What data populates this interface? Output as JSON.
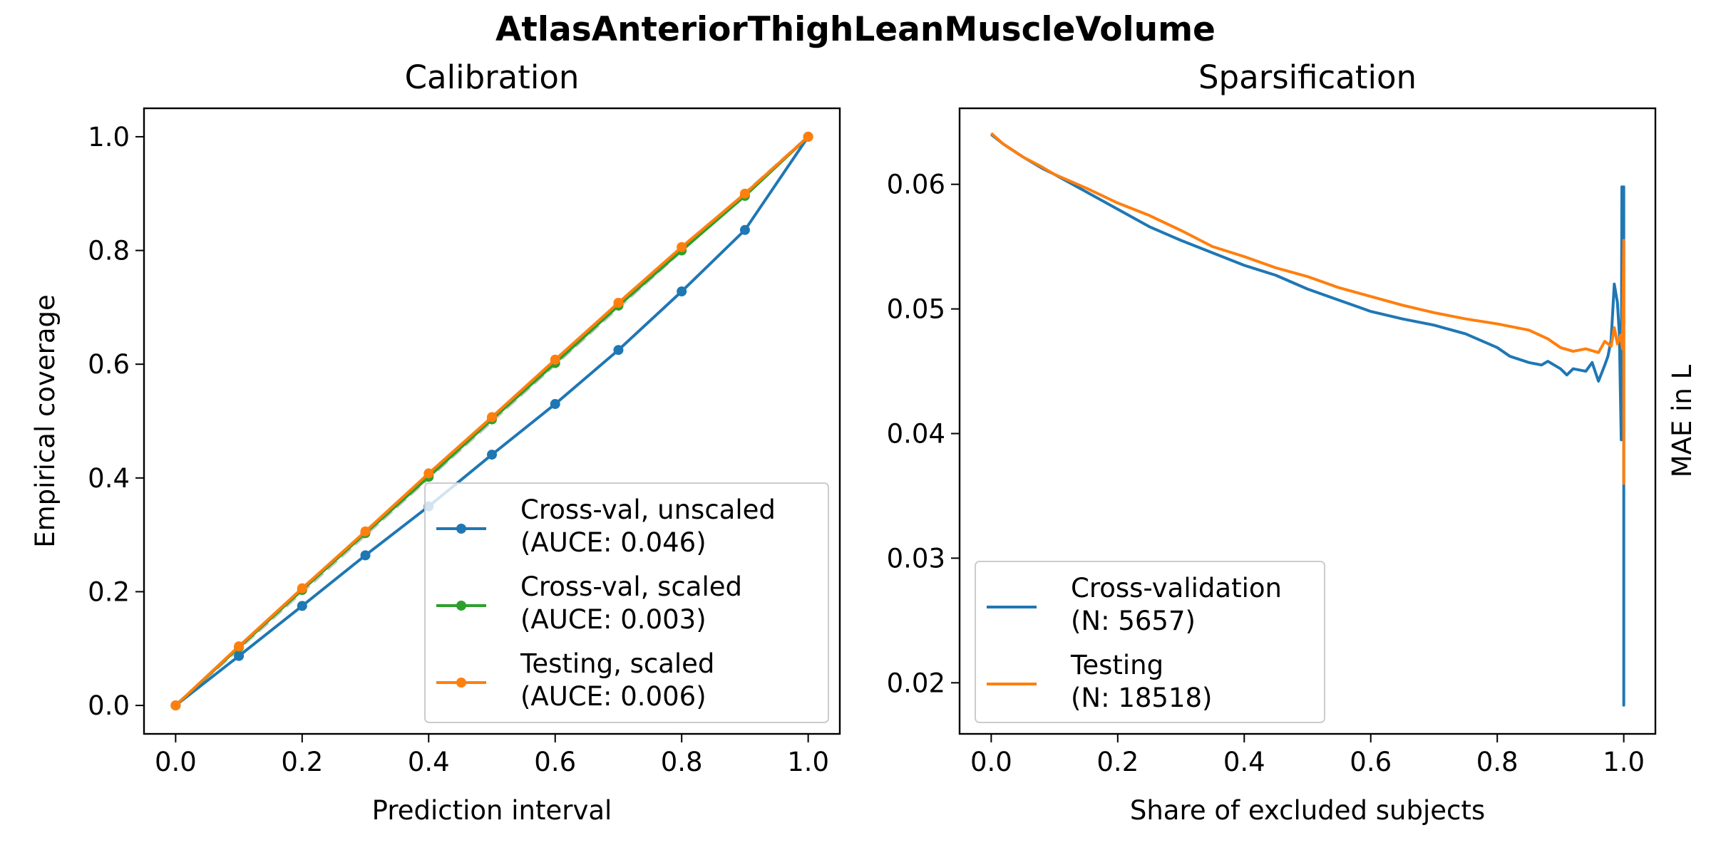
{
  "figure": {
    "title": "AtlasAnteriorThighLeanMuscleVolume"
  },
  "chart_data": [
    {
      "type": "line",
      "title": "Calibration",
      "xlabel": "Prediction interval",
      "ylabel": "Empirical coverage",
      "xlim": [
        -0.05,
        1.05
      ],
      "ylim": [
        -0.05,
        1.05
      ],
      "xticks": [
        "0.0",
        "0.2",
        "0.4",
        "0.6",
        "0.8",
        "1.0"
      ],
      "yticks": [
        "0.0",
        "0.2",
        "0.4",
        "0.6",
        "0.8",
        "1.0"
      ],
      "grid": false,
      "legend_position": "lower-right",
      "reference_line": {
        "x": [
          0,
          1
        ],
        "y": [
          0,
          1
        ],
        "style": "dashed",
        "color": "#c8c8c8"
      },
      "x": [
        0.0,
        0.1,
        0.2,
        0.3,
        0.4,
        0.5,
        0.6,
        0.7,
        0.8,
        0.9,
        1.0
      ],
      "series": [
        {
          "name": "Cross-val, unscaled",
          "legend_line2": "(AUCE: 0.046)",
          "color": "#1f77b4",
          "values": [
            0.0,
            0.087,
            0.175,
            0.264,
            0.35,
            0.441,
            0.53,
            0.625,
            0.728,
            0.836,
            1.0
          ]
        },
        {
          "name": "Cross-val, scaled",
          "legend_line2": "(AUCE: 0.003)",
          "color": "#2ca02c",
          "values": [
            0.0,
            0.102,
            0.203,
            0.303,
            0.402,
            0.503,
            0.602,
            0.703,
            0.8,
            0.896,
            1.0
          ]
        },
        {
          "name": "Testing, scaled",
          "legend_line2": "(AUCE: 0.006)",
          "color": "#ff7f0e",
          "values": [
            0.0,
            0.104,
            0.206,
            0.306,
            0.408,
            0.507,
            0.608,
            0.708,
            0.806,
            0.9,
            1.0
          ]
        }
      ]
    },
    {
      "type": "line",
      "title": "Sparsification",
      "xlabel": "Share of excluded subjects",
      "ylabel": "MAE in L",
      "ylabel_side": "right",
      "xlim": [
        -0.05,
        1.05
      ],
      "ylim": [
        0.0159,
        0.0661
      ],
      "xticks": [
        "0.0",
        "0.2",
        "0.4",
        "0.6",
        "0.8",
        "1.0"
      ],
      "yticks": [
        "0.02",
        "0.03",
        "0.04",
        "0.05",
        "0.06"
      ],
      "grid": false,
      "legend_position": "lower-left",
      "series": [
        {
          "name": "Cross-validation",
          "legend_line2": "(N: 5657)",
          "color": "#1f77b4",
          "x": [
            0.0,
            0.02,
            0.05,
            0.08,
            0.1,
            0.15,
            0.2,
            0.25,
            0.3,
            0.35,
            0.4,
            0.45,
            0.5,
            0.55,
            0.6,
            0.65,
            0.7,
            0.75,
            0.8,
            0.82,
            0.85,
            0.87,
            0.88,
            0.9,
            0.91,
            0.92,
            0.94,
            0.95,
            0.96,
            0.97,
            0.975,
            0.98,
            0.985,
            0.99,
            0.993,
            0.996,
            0.997,
            0.998,
            0.999,
            1.0,
            1.0,
            1.0
          ],
          "values": [
            0.064,
            0.0632,
            0.0622,
            0.0613,
            0.0608,
            0.0594,
            0.058,
            0.0566,
            0.0555,
            0.0545,
            0.0535,
            0.0527,
            0.0516,
            0.0507,
            0.0498,
            0.0492,
            0.0487,
            0.048,
            0.0469,
            0.0462,
            0.0457,
            0.0455,
            0.0458,
            0.0452,
            0.0447,
            0.0452,
            0.045,
            0.0457,
            0.0442,
            0.0455,
            0.0462,
            0.0475,
            0.052,
            0.0505,
            0.048,
            0.0395,
            0.0598,
            0.041,
            0.05,
            0.0598,
            0.0182,
            0.04
          ]
        },
        {
          "name": "Testing",
          "legend_line2": "(N: 18518)",
          "color": "#ff7f0e",
          "x": [
            0.0,
            0.02,
            0.05,
            0.08,
            0.1,
            0.15,
            0.2,
            0.25,
            0.3,
            0.35,
            0.4,
            0.45,
            0.5,
            0.55,
            0.6,
            0.65,
            0.7,
            0.75,
            0.8,
            0.85,
            0.88,
            0.9,
            0.92,
            0.94,
            0.96,
            0.97,
            0.98,
            0.985,
            0.99,
            0.995,
            0.998,
            1.0,
            1.0,
            1.0
          ],
          "values": [
            0.0641,
            0.0632,
            0.0622,
            0.0614,
            0.0608,
            0.0597,
            0.0585,
            0.0575,
            0.0563,
            0.055,
            0.0542,
            0.0533,
            0.0526,
            0.0517,
            0.051,
            0.0503,
            0.0497,
            0.0492,
            0.0488,
            0.0483,
            0.0476,
            0.0469,
            0.0466,
            0.0468,
            0.0465,
            0.0474,
            0.047,
            0.0485,
            0.0472,
            0.0479,
            0.0468,
            0.0555,
            0.036,
            0.048
          ]
        }
      ]
    }
  ]
}
